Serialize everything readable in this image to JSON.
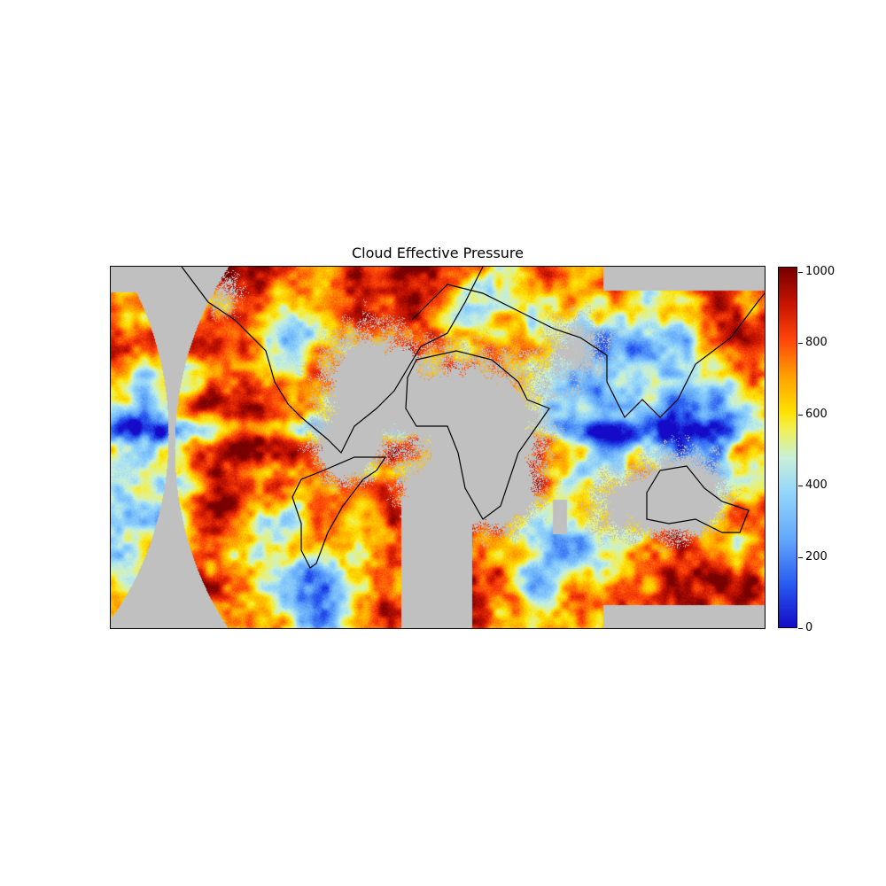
{
  "chart_data": {
    "type": "heatmap",
    "title": "Cloud Effective Pressure",
    "projection": "plate-carree",
    "missing_color": "#c0c0c0",
    "colormap": "jet-like (blue-lightblue-yellow-orange-red-darkred)",
    "colorbar": {
      "vmin": 0,
      "vmax": 1015,
      "ticks": [
        0,
        200,
        400,
        600,
        800,
        1000
      ],
      "tick_labels": [
        "0",
        "200",
        "400",
        "600",
        "800",
        "1000"
      ],
      "orientation": "vertical",
      "placement": "right"
    },
    "features": [
      "coastlines",
      "country borders",
      "US state borders"
    ]
  }
}
